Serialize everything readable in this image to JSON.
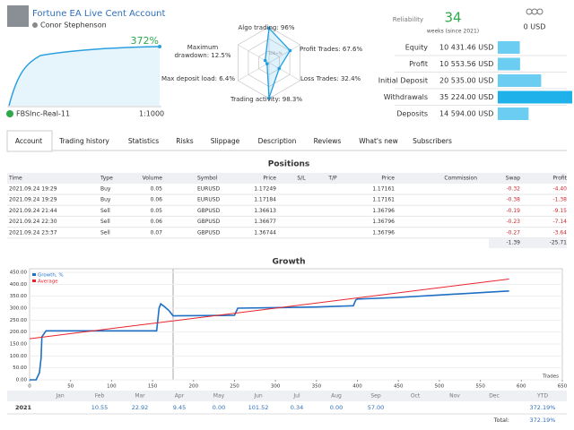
{
  "header": {
    "title": "Fortune EA Live Cent Account",
    "owner": "Conor Stephenson",
    "growth": "372%",
    "server": "FBSInc-Real-11",
    "leverage": "1:1000"
  },
  "radar": {
    "center_label": "100+%",
    "rlim": [
      0,
      100
    ],
    "axes": [
      {
        "label": "Algo trading: 96%",
        "value": 96
      },
      {
        "label": "Profit Trades: 67.6%",
        "value": 67.6
      },
      {
        "label": "Loss Trades: 32.4%",
        "value": 32.4
      },
      {
        "label": "Trading activity: 98.3%",
        "value": 98.3
      },
      {
        "label": "Max deposit load: 6.4%",
        "value": 6.4
      },
      {
        "label": "Maximum drawdown: 12.5%",
        "value": 12.5
      }
    ]
  },
  "reliability": {
    "label": "Reliability",
    "weeks": "34",
    "weeks_note": "weeks (since 2021)",
    "subscribers": "0 USD"
  },
  "stats": [
    {
      "label": "Equity",
      "value": 10431.46,
      "value_label": "10 431.46 USD",
      "color": "#6ccdf2"
    },
    {
      "label": "Profit",
      "value": 10553.56,
      "value_label": "10 553.56 USD",
      "color": "#6ccdf2"
    },
    {
      "label": "Initial Deposit",
      "value": 20535.0,
      "value_label": "20 535.00 USD",
      "color": "#6ccdf2"
    },
    {
      "label": "Withdrawals",
      "value": 35224.0,
      "value_label": "35 224.00 USD",
      "color": "#1fb2ea"
    },
    {
      "label": "Deposits",
      "value": 14594.0,
      "value_label": "14 594.00 USD",
      "color": "#6ccdf2"
    }
  ],
  "tabs": [
    "Account",
    "Trading history",
    "Statistics",
    "Risks",
    "Slippage",
    "Description",
    "Reviews",
    "What's new",
    "Subscribers"
  ],
  "active_tab": 0,
  "positions": {
    "title": "Positions",
    "columns": [
      "Time",
      "Type",
      "Volume",
      "Symbol",
      "Price",
      "S/L",
      "T/P",
      "Price",
      "Commission",
      "Swap",
      "Profit"
    ],
    "rows": [
      [
        "2021.09.24 19:29",
        "Buy",
        "0.05",
        "EURUSD",
        "1.17249",
        null,
        null,
        "1.17161",
        null,
        "-0.32",
        "-4.40"
      ],
      [
        "2021.09.24 19:29",
        "Buy",
        "0.06",
        "EURUSD",
        "1.17184",
        null,
        null,
        "1.17161",
        null,
        "-0.38",
        "-1.38"
      ],
      [
        "2021.09.24 21:44",
        "Sell",
        "0.05",
        "GBPUSD",
        "1.36613",
        null,
        null,
        "1.36796",
        null,
        "-0.19",
        "-9.15"
      ],
      [
        "2021.09.24 22:30",
        "Sell",
        "0.06",
        "GBPUSD",
        "1.36677",
        null,
        null,
        "1.36796",
        null,
        "-0.23",
        "-7.14"
      ],
      [
        "2021.09.24 23:37",
        "Sell",
        "0.07",
        "GBPUSD",
        "1.36744",
        null,
        null,
        "1.36796",
        null,
        "-0.27",
        "-3.64"
      ]
    ],
    "totals": {
      "swap": "-1.39",
      "profit": "-25.71"
    }
  },
  "chart_data": {
    "type": "line",
    "title": "Growth",
    "x_label": "Trades",
    "xlim": [
      0,
      650
    ],
    "ylim": [
      0,
      450
    ],
    "grid": true,
    "xticks": [
      0,
      50,
      100,
      150,
      200,
      250,
      300,
      350,
      400,
      450,
      500,
      550,
      600,
      650
    ],
    "yticks": [
      {
        "value": 0,
        "label": "0.00"
      },
      {
        "value": 50,
        "label": "50.00"
      },
      {
        "value": 100,
        "label": "100.00"
      },
      {
        "value": 150,
        "label": "150.00"
      },
      {
        "value": 200,
        "label": "200.00"
      },
      {
        "value": 250,
        "label": "250.00"
      },
      {
        "value": 300,
        "label": "300.00"
      },
      {
        "value": 350,
        "label": "350.00"
      },
      {
        "value": 400,
        "label": "400.00"
      },
      {
        "value": 450,
        "label": "450.00"
      }
    ],
    "series": [
      {
        "name": "Growth, %",
        "color": "#1f6fc5",
        "x": [
          0,
          8,
          12,
          14,
          15,
          20,
          155,
          158,
          160,
          165,
          170,
          175,
          250,
          254,
          300,
          350,
          395,
          398,
          400,
          450,
          500,
          550,
          585
        ],
        "values": [
          0,
          0,
          30,
          90,
          180,
          205,
          205,
          300,
          318,
          305,
          290,
          268,
          270,
          300,
          302,
          305,
          310,
          335,
          338,
          345,
          355,
          365,
          372
        ]
      },
      {
        "name": "Average",
        "color": "#e8232b",
        "x": [
          0,
          585
        ],
        "values": [
          172,
          422
        ]
      }
    ]
  },
  "monthly": {
    "months": [
      "Jan",
      "Feb",
      "Mar",
      "Apr",
      "May",
      "Jun",
      "Jul",
      "Aug",
      "Sep",
      "Oct",
      "Nov",
      "Dec"
    ],
    "ytd_label": "YTD",
    "year": "2021",
    "values": [
      null,
      "10.55",
      "22.92",
      "9.45",
      "0.00",
      "101.52",
      "0.34",
      "0.00",
      "57.00",
      null,
      null,
      null
    ],
    "ytd": "372.19%",
    "total_label": "Total:",
    "total": "372.19%"
  }
}
